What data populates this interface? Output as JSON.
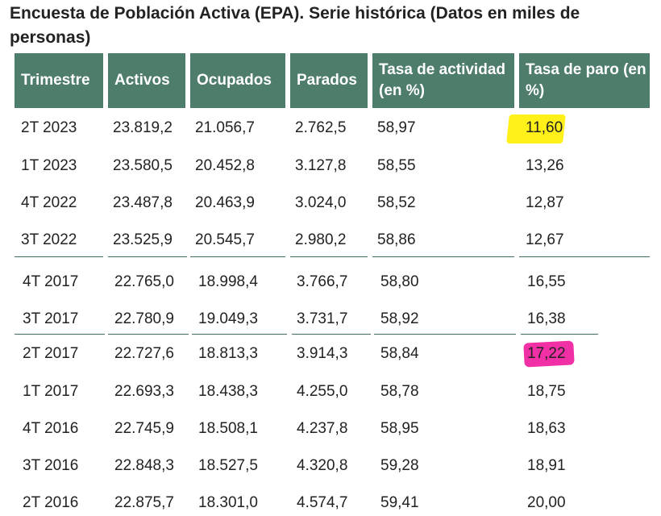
{
  "title": "Encuesta de Población Activa (EPA). Serie histórica (Datos en miles de personas)",
  "headers": [
    "Trimestre",
    "Activos",
    "Ocupados",
    "Parados",
    "Tasa de actividad (en %)",
    "Tasa de paro (en %)"
  ],
  "rows": [
    [
      "2T 2023",
      "23.819,2",
      "21.056,7",
      "2.762,5",
      "58,97",
      "11,60"
    ],
    [
      "1T 2023",
      "23.580,5",
      "20.452,8",
      "3.127,8",
      "58,55",
      "13,26"
    ],
    [
      "4T 2022",
      "23.487,8",
      "20.463,9",
      "3.024,0",
      "58,52",
      "12,87"
    ],
    [
      "3T 2022",
      "23.525,9",
      "20.545,7",
      "2.980,2",
      "58,86",
      "12,67"
    ],
    [
      "4T 2017",
      "22.765,0",
      "18.998,4",
      "3.766,7",
      "58,80",
      "16,55"
    ],
    [
      "3T 2017",
      "22.780,9",
      "19.049,3",
      "3.731,7",
      "58,92",
      "16,38"
    ],
    [
      "2T 2017",
      "22.727,6",
      "18.813,3",
      "3.914,3",
      "58,84",
      "17,22"
    ],
    [
      "1T 2017",
      "22.693,3",
      "18.438,3",
      "4.255,0",
      "58,78",
      "18,75"
    ],
    [
      "4T 2016",
      "22.745,9",
      "18.508,1",
      "4.237,8",
      "58,95",
      "18,63"
    ],
    [
      "3T 2016",
      "22.848,3",
      "18.527,5",
      "4.320,8",
      "59,28",
      "18,91"
    ],
    [
      "2T 2016",
      "22.875,7",
      "18.301,0",
      "4.574,7",
      "59,41",
      "20,00"
    ]
  ],
  "colors": {
    "header_bg": "#4e7d6c",
    "highlight_yellow": "#ffee00",
    "highlight_pink": "#ee1a9a"
  }
}
